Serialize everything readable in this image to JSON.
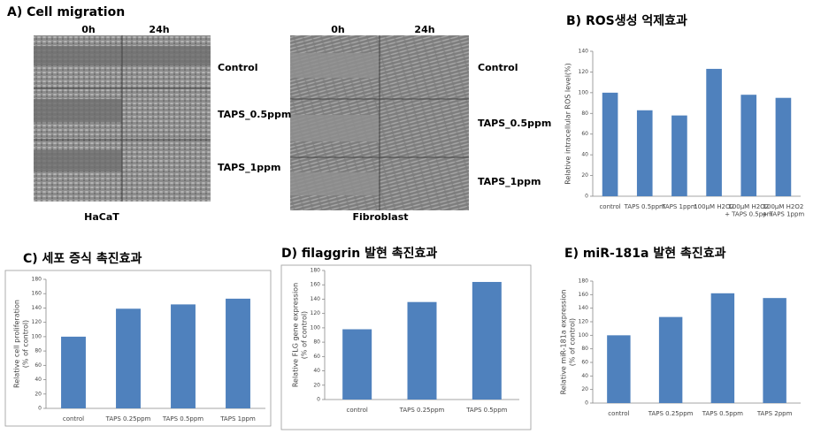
{
  "figure_a": {
    "title": "A) Cell migration",
    "time_labels": [
      "0h",
      "24h"
    ],
    "panels": [
      {
        "name": "HaCaT",
        "rows": [
          "Control",
          "TAPS_0.5ppm",
          "TAPS_1ppm"
        ]
      },
      {
        "name": "Fibroblast",
        "rows": [
          "Control",
          "TAPS_0.5ppm",
          "TAPS_1ppm"
        ]
      }
    ]
  },
  "chart_data": [
    {
      "type": "bar",
      "title": "B) ROS생성 억제효과",
      "ylabel": [
        "Relative intracellular ROS level(%)"
      ],
      "categories": [
        "control",
        "TAPS 0.5ppm",
        "TAPS 1ppm",
        "100μM H2O2",
        "100μM H2O2\n+ TAPS 0.5ppm",
        "100μM H2O2\n+ TAPS 1ppm"
      ],
      "values": [
        100,
        83,
        78,
        123,
        98,
        95
      ],
      "color": "#4f81bd",
      "ylim": [
        0,
        140
      ],
      "yticks": [
        0,
        20,
        40,
        60,
        80,
        100,
        120,
        140
      ]
    },
    {
      "type": "bar",
      "title": "C) 세포 증식 촉진효과",
      "ylabel": [
        "Relative cell proliferation",
        "(% of control)"
      ],
      "categories": [
        "control",
        "TAPS 0.25ppm",
        "TAPS 0.5ppm",
        "TAPS 1ppm"
      ],
      "values": [
        100,
        139,
        145,
        153
      ],
      "color": "#4f81bd",
      "ylim": [
        0,
        180
      ],
      "yticks": [
        0,
        20,
        40,
        60,
        80,
        100,
        120,
        140,
        160,
        180
      ]
    },
    {
      "type": "bar",
      "title": "D) filaggrin 발현 촉진효과",
      "ylabel": [
        "Relative FLG gene expression",
        "(% of control)"
      ],
      "categories": [
        "control",
        "TAPS 0.25ppm",
        "TAPS 0.5ppm"
      ],
      "values": [
        98,
        136,
        164
      ],
      "color": "#4f81bd",
      "ylim": [
        0,
        180
      ],
      "yticks": [
        0,
        20,
        40,
        60,
        80,
        100,
        120,
        140,
        160,
        180
      ]
    },
    {
      "type": "bar",
      "title": "E) miR-181a 발현 촉진효과",
      "ylabel": [
        "Relative miR-181a expression",
        "(% of control)"
      ],
      "categories": [
        "control",
        "TAPS 0.25ppm",
        "TAPS 0.5ppm",
        "TAPS 2ppm"
      ],
      "values": [
        100,
        127,
        162,
        155
      ],
      "color": "#4f81bd",
      "ylim": [
        0,
        180
      ],
      "yticks": [
        0,
        20,
        40,
        60,
        80,
        100,
        120,
        140,
        160,
        180
      ]
    }
  ]
}
